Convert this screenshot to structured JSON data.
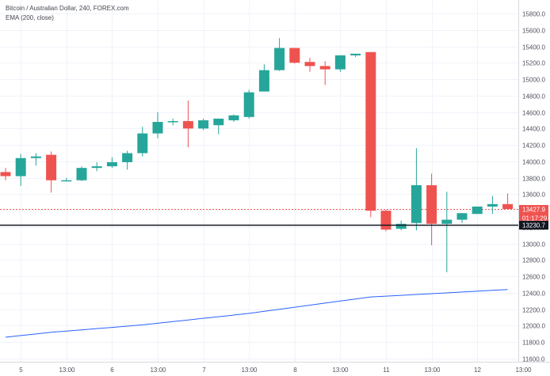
{
  "header": {
    "title": "Bitcoin / Australian Dollar, 240, FOREX.com",
    "indicator": "EMA (200, close)"
  },
  "colors": {
    "up": "#26a69a",
    "down": "#ef5350",
    "ema": "#2962ff",
    "grid": "#f0f3fa",
    "axis_border": "#d6d9e0"
  },
  "price_tags": {
    "last_price": "13427.9",
    "countdown": "01:17:29",
    "crosshair_price": "13230.7"
  },
  "chart_data": {
    "type": "candlestick",
    "title": "Bitcoin / Australian Dollar, 240, FOREX.com",
    "ylim": [
      11500,
      15900
    ],
    "y_ticks": [
      11600,
      11800,
      12000,
      12200,
      12400,
      12600,
      12800,
      13000,
      13200,
      13400,
      13600,
      13800,
      14000,
      14200,
      14400,
      14600,
      14800,
      15000,
      15200,
      15400,
      15600,
      15800
    ],
    "y_tick_labels": [
      "11600.0",
      "11800.0",
      "12000.0",
      "12200.0",
      "12400.0",
      "12600.0",
      "12800.0",
      "13000.0",
      "13200.0",
      "13400.0",
      "13600.0",
      "13800.0",
      "14000.0",
      "14200.0",
      "14400.0",
      "14600.0",
      "14800.0",
      "15000.0",
      "15200.0",
      "15400.0",
      "15600.0",
      "15800.0"
    ],
    "x_ticks": [
      {
        "bar": 1,
        "label": "5"
      },
      {
        "bar": 4,
        "label": "13:00"
      },
      {
        "bar": 7,
        "label": "6"
      },
      {
        "bar": 10,
        "label": "13:00"
      },
      {
        "bar": 13,
        "label": "7"
      },
      {
        "bar": 16,
        "label": "13:00"
      },
      {
        "bar": 19,
        "label": "8"
      },
      {
        "bar": 22,
        "label": "13:00"
      },
      {
        "bar": 25,
        "label": "11"
      },
      {
        "bar": 28,
        "label": "13:00"
      },
      {
        "bar": 31,
        "label": "12"
      },
      {
        "bar": 34,
        "label": "13:00"
      }
    ],
    "candles": [
      {
        "o": 13870,
        "h": 13920,
        "l": 13770,
        "c": 13820
      },
      {
        "o": 13820,
        "h": 14090,
        "l": 13700,
        "c": 14040
      },
      {
        "o": 14040,
        "h": 14100,
        "l": 13950,
        "c": 14060
      },
      {
        "o": 14080,
        "h": 14120,
        "l": 13620,
        "c": 13770
      },
      {
        "o": 13770,
        "h": 13800,
        "l": 13760,
        "c": 13770
      },
      {
        "o": 13770,
        "h": 13940,
        "l": 13760,
        "c": 13920
      },
      {
        "o": 13920,
        "h": 13990,
        "l": 13880,
        "c": 13940
      },
      {
        "o": 13940,
        "h": 14050,
        "l": 13920,
        "c": 13990
      },
      {
        "o": 13990,
        "h": 14130,
        "l": 13900,
        "c": 14100
      },
      {
        "o": 14100,
        "h": 14420,
        "l": 14060,
        "c": 14340
      },
      {
        "o": 14340,
        "h": 14600,
        "l": 14280,
        "c": 14480
      },
      {
        "o": 14480,
        "h": 14520,
        "l": 14440,
        "c": 14490
      },
      {
        "o": 14490,
        "h": 14740,
        "l": 14170,
        "c": 14400
      },
      {
        "o": 14400,
        "h": 14520,
        "l": 14380,
        "c": 14500
      },
      {
        "o": 14440,
        "h": 14500,
        "l": 14330,
        "c": 14520
      },
      {
        "o": 14500,
        "h": 14570,
        "l": 14480,
        "c": 14560
      },
      {
        "o": 14540,
        "h": 14870,
        "l": 14520,
        "c": 14840
      },
      {
        "o": 14850,
        "h": 15180,
        "l": 14850,
        "c": 15110
      },
      {
        "o": 15110,
        "h": 15500,
        "l": 15100,
        "c": 15380
      },
      {
        "o": 15380,
        "h": 15380,
        "l": 15190,
        "c": 15200
      },
      {
        "o": 15210,
        "h": 15260,
        "l": 15090,
        "c": 15160
      },
      {
        "o": 15160,
        "h": 15220,
        "l": 14930,
        "c": 15120
      },
      {
        "o": 15120,
        "h": 15290,
        "l": 15090,
        "c": 15290
      },
      {
        "o": 15290,
        "h": 15310,
        "l": 15270,
        "c": 15310
      },
      {
        "o": 15330,
        "h": 15330,
        "l": 13320,
        "c": 13400
      },
      {
        "o": 13400,
        "h": 13410,
        "l": 13150,
        "c": 13170
      },
      {
        "o": 13180,
        "h": 13280,
        "l": 13160,
        "c": 13240
      },
      {
        "o": 13250,
        "h": 14160,
        "l": 13160,
        "c": 13710
      },
      {
        "o": 13710,
        "h": 13850,
        "l": 12980,
        "c": 13240
      },
      {
        "o": 13240,
        "h": 13630,
        "l": 12650,
        "c": 13290
      },
      {
        "o": 13290,
        "h": 13370,
        "l": 13250,
        "c": 13370
      },
      {
        "o": 13360,
        "h": 13450,
        "l": 13360,
        "c": 13450
      },
      {
        "o": 13450,
        "h": 13580,
        "l": 13360,
        "c": 13480
      },
      {
        "o": 13480,
        "h": 13610,
        "l": 13420,
        "c": 13420
      }
    ],
    "ema_series": {
      "name": "EMA (200, close)",
      "values": [
        11860,
        11880,
        11900,
        11920,
        11935,
        11950,
        11965,
        11980,
        11995,
        12010,
        12030,
        12050,
        12070,
        12090,
        12110,
        12130,
        12150,
        12175,
        12200,
        12225,
        12250,
        12275,
        12300,
        12325,
        12350,
        12360,
        12370,
        12380,
        12390,
        12400,
        12410,
        12420,
        12430,
        12440
      ]
    },
    "reference_lines": [
      {
        "label": "13230.7",
        "value": 13230.7
      }
    ]
  }
}
